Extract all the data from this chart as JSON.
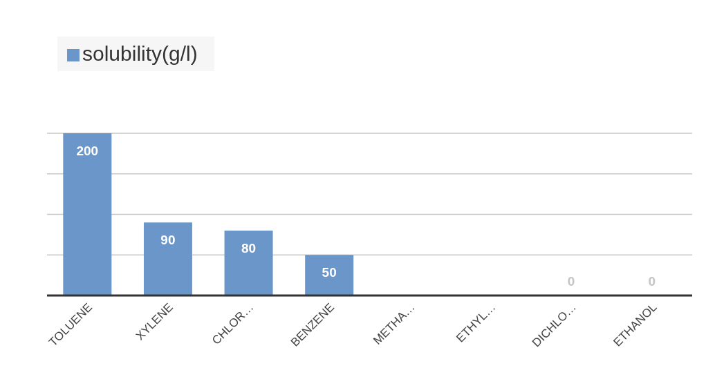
{
  "chart_data": {
    "type": "bar",
    "categories": [
      "TOLUENE",
      "XYLENE",
      "CHLOR…",
      "BENZENE",
      "METHA…",
      "ETHYL…",
      "DICHLO…",
      "ETHANOL"
    ],
    "series": [
      {
        "name": "solubility(g/l)",
        "color": "#6a96c9",
        "values": [
          200,
          90,
          80,
          50,
          null,
          null,
          0,
          0
        ],
        "value_labels": [
          "200",
          "90",
          "80",
          "50",
          null,
          null,
          "0",
          "0"
        ]
      }
    ],
    "ylim": [
      0,
      200
    ],
    "yticks": [
      {
        "value": 0,
        "label": null
      },
      {
        "value": 50,
        "label": null
      },
      {
        "value": 100,
        "label": null
      },
      {
        "value": 150,
        "label": null
      },
      {
        "value": 200,
        "label": null
      }
    ],
    "tick_labels": "x",
    "grid": "y",
    "legend": "top left"
  }
}
